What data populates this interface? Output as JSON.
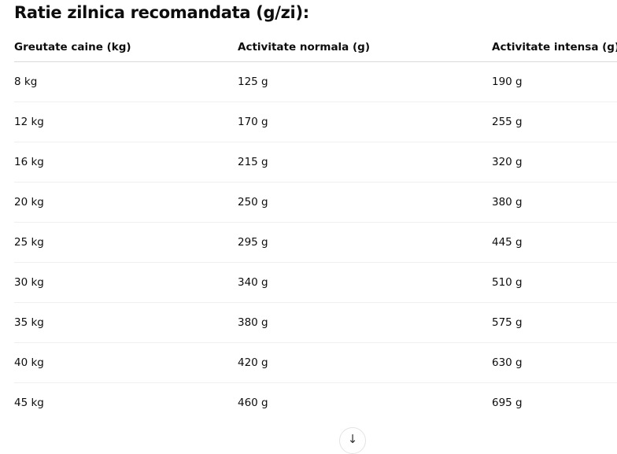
{
  "title": "Ratie zilnica recomandata (g/zi):",
  "table": {
    "headers": [
      "Greutate caine (kg)",
      "Activitate normala (g)",
      "Activitate intensa (g)"
    ],
    "rows": [
      [
        "8 kg",
        "125 g",
        "190 g"
      ],
      [
        "12 kg",
        "170 g",
        "255 g"
      ],
      [
        "16 kg",
        "215 g",
        "320 g"
      ],
      [
        "20 kg",
        "250 g",
        "380 g"
      ],
      [
        "25 kg",
        "295 g",
        "445 g"
      ],
      [
        "30 kg",
        "340 g",
        "510 g"
      ],
      [
        "35 kg",
        "380 g",
        "575 g"
      ],
      [
        "40 kg",
        "420 g",
        "630 g"
      ],
      [
        "45 kg",
        "460 g",
        "695 g"
      ]
    ]
  },
  "scroll_button": {
    "icon": "arrow-down-icon",
    "glyph": "↓"
  }
}
